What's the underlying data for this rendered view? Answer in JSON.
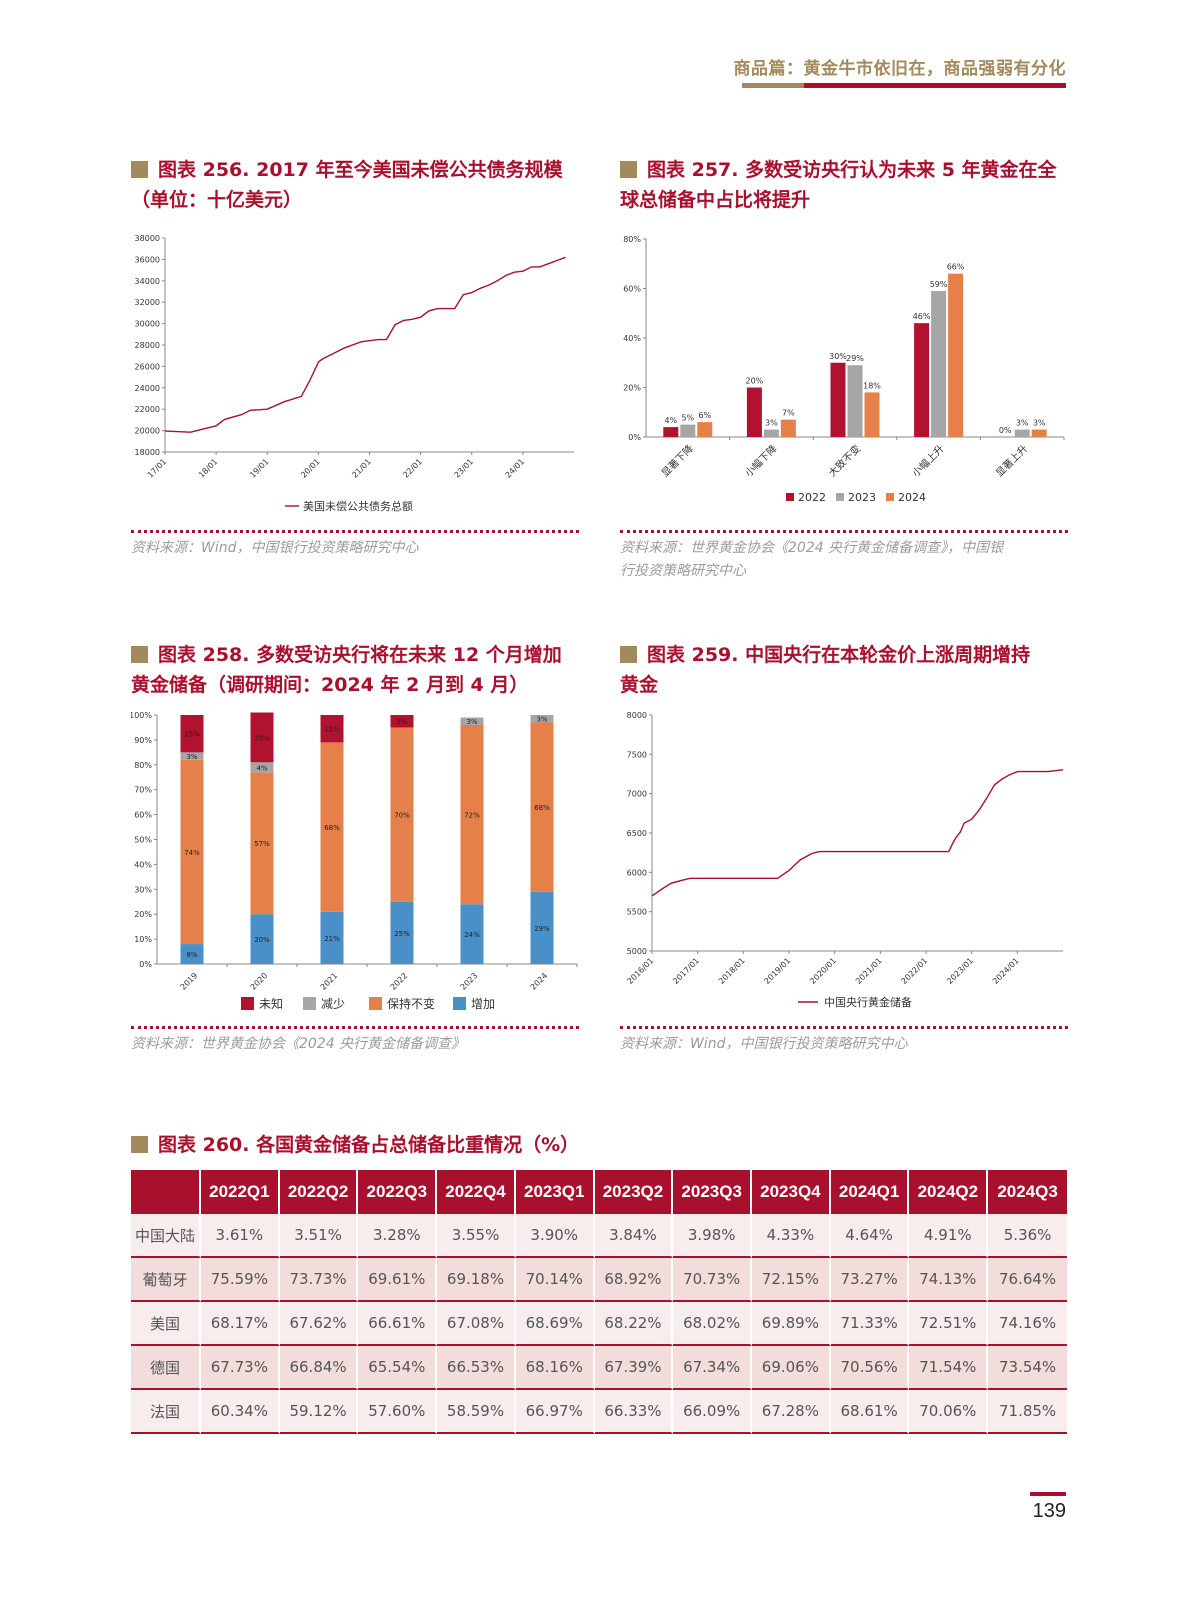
{
  "header": {
    "title": "商品篇：黄金牛市依旧在，商品强弱有分化"
  },
  "fig256": {
    "title_line1": "图表 256. 2017 年至今美国未偿公共债务规模",
    "title_line2": "（单位：十亿美元）",
    "source": "资料来源：Wind，中国银行投资策略研究中心"
  },
  "fig257": {
    "title_line1": "图表 257. 多数受访央行认为未来 5 年黄金在全",
    "title_line2": "球总储备中占比将提升",
    "source_line1": "资料来源：世界黄金协会《2024 央行黄金储备调查》，中国银",
    "source_line2": "行投资策略研究中心"
  },
  "fig258": {
    "title_line1": "图表 258. 多数受访央行将在未来 12 个月增加",
    "title_line2": "黄金储备（调研期间：2024 年 2 月到 4 月）",
    "source": "资料来源：世界黄金协会《2024 央行黄金储备调查》"
  },
  "fig259": {
    "title_line1": "图表 259. 中国央行在本轮金价上涨周期增持",
    "title_line2": "黄金",
    "source": "资料来源：Wind，中国银行投资策略研究中心"
  },
  "fig260": {
    "title": "图表 260. 各国黄金储备占总储备比重情况（%）"
  },
  "chart_data": [
    {
      "id": "c256",
      "type": "line",
      "ylim": [
        18000,
        38000
      ],
      "yticks": [
        "18000",
        "20000",
        "22000",
        "24000",
        "26000",
        "28000",
        "30000",
        "32000",
        "34000",
        "36000",
        "38000"
      ],
      "xticks": [
        "17/01",
        "18/01",
        "19/01",
        "20/01",
        "21/01",
        "22/01",
        "23/01",
        "24/01"
      ],
      "x": [
        0,
        6,
        12,
        14,
        18,
        20,
        24,
        28,
        32,
        34,
        36,
        37,
        38,
        40,
        42,
        44,
        46,
        48,
        50,
        52,
        54,
        56,
        58,
        60,
        62,
        64,
        66,
        68,
        70,
        72,
        74,
        76,
        78,
        80,
        82,
        84,
        86,
        88,
        90,
        92,
        94
      ],
      "series": [
        {
          "name": "美国未偿公共债务总额",
          "color": "#a8102e",
          "values": [
            19950,
            19850,
            20450,
            21050,
            21500,
            21900,
            22000,
            22700,
            23200,
            24700,
            26400,
            26700,
            26900,
            27300,
            27700,
            28000,
            28300,
            28400,
            28500,
            28500,
            29900,
            30300,
            30400,
            30600,
            31200,
            31400,
            31400,
            31400,
            32700,
            32900,
            33300,
            33600,
            34000,
            34500,
            34800,
            34900,
            35300,
            35300,
            35600,
            35900,
            36200
          ]
        }
      ]
    },
    {
      "id": "c257",
      "type": "bar",
      "ylim": [
        0,
        80
      ],
      "yticks": [
        "0%",
        "20%",
        "40%",
        "60%",
        "80%"
      ],
      "categories": [
        "显著下降",
        "小幅下降",
        "大致不变",
        "小幅上升",
        "显著上升"
      ],
      "series": [
        {
          "name": "2022",
          "color": "#b0122f",
          "values": [
            4,
            20,
            30,
            46,
            0
          ],
          "labels": [
            "4%",
            "20%",
            "30%",
            "46%",
            "0%"
          ]
        },
        {
          "name": "2023",
          "color": "#a6a6a6",
          "values": [
            5,
            3,
            29,
            59,
            3
          ],
          "labels": [
            "5%",
            "3%",
            "29%",
            "59%",
            "3%"
          ]
        },
        {
          "name": "2024",
          "color": "#e5804a",
          "values": [
            6,
            7,
            18,
            66,
            3
          ],
          "labels": [
            "6%",
            "7%",
            "18%",
            "66%",
            "3%"
          ]
        }
      ]
    },
    {
      "id": "c258",
      "type": "bar",
      "stacked": true,
      "ylim": [
        0,
        100
      ],
      "yticks": [
        "0%",
        "10%",
        "20%",
        "30%",
        "40%",
        "50%",
        "60%",
        "70%",
        "80%",
        "90%",
        "100%"
      ],
      "categories": [
        "2019",
        "2020",
        "2021",
        "2022",
        "2023",
        "2024"
      ],
      "series": [
        {
          "name": "增加",
          "color": "#4a90c8",
          "values": [
            8,
            20,
            21,
            25,
            24,
            29
          ],
          "labels": [
            "8%",
            "20%",
            "21%",
            "25%",
            "24%",
            "29%"
          ]
        },
        {
          "name": "保持不变",
          "color": "#e5804a",
          "values": [
            74,
            57,
            68,
            70,
            72,
            68
          ],
          "labels": [
            "74%",
            "57%",
            "68%",
            "70%",
            "72%",
            "68%"
          ]
        },
        {
          "name": "减少",
          "color": "#a6a6a6",
          "values": [
            3,
            4,
            0,
            0,
            3,
            3
          ],
          "labels": [
            "3%",
            "4%",
            "",
            "",
            "3%",
            "3%"
          ]
        },
        {
          "name": "未知",
          "color": "#b0122f",
          "values": [
            15,
            20,
            11,
            5,
            0,
            0
          ],
          "labels": [
            "15%",
            "20%",
            "11%",
            "5%",
            "",
            ""
          ]
        }
      ],
      "legend": [
        "未知",
        "减少",
        "保持不变",
        "增加"
      ]
    },
    {
      "id": "c259",
      "type": "line",
      "ylim": [
        5000,
        8000
      ],
      "yticks": [
        "5000",
        "5500",
        "6000",
        "6500",
        "7000",
        "7500",
        "8000"
      ],
      "xticks": [
        "2016/01",
        "2017/01",
        "2018/01",
        "2019/01",
        "2020/01",
        "2021/01",
        "2022/01",
        "2023/01",
        "2024/01"
      ],
      "x": [
        0,
        3,
        5,
        8,
        10,
        12,
        18,
        24,
        30,
        33,
        36,
        39,
        42,
        44,
        48,
        54,
        60,
        66,
        72,
        76,
        78,
        79,
        80,
        81,
        82,
        84,
        86,
        88,
        90,
        92,
        94,
        96,
        100,
        104,
        108
      ],
      "series": [
        {
          "name": "中国央行黄金储备",
          "color": "#a8102e",
          "values": [
            5700,
            5800,
            5860,
            5900,
            5924,
            5924,
            5924,
            5924,
            5924,
            5924,
            6024,
            6160,
            6240,
            6264,
            6264,
            6264,
            6264,
            6264,
            6264,
            6264,
            6264,
            6367,
            6450,
            6512,
            6626,
            6676,
            6795,
            6948,
            7112,
            7187,
            7241,
            7280,
            7280,
            7280,
            7304
          ]
        }
      ]
    }
  ],
  "table": {
    "headers": [
      "",
      "2022Q1",
      "2022Q2",
      "2022Q3",
      "2022Q4",
      "2023Q1",
      "2023Q2",
      "2023Q3",
      "2023Q4",
      "2024Q1",
      "2024Q2",
      "2024Q3"
    ],
    "rows": [
      {
        "label": "中国大陆",
        "values": [
          "3.61%",
          "3.51%",
          "3.28%",
          "3.55%",
          "3.90%",
          "3.84%",
          "3.98%",
          "4.33%",
          "4.64%",
          "4.91%",
          "5.36%"
        ]
      },
      {
        "label": "葡萄牙",
        "values": [
          "75.59%",
          "73.73%",
          "69.61%",
          "69.18%",
          "70.14%",
          "68.92%",
          "70.73%",
          "72.15%",
          "73.27%",
          "74.13%",
          "76.64%"
        ]
      },
      {
        "label": "美国",
        "values": [
          "68.17%",
          "67.62%",
          "66.61%",
          "67.08%",
          "68.69%",
          "68.22%",
          "68.02%",
          "69.89%",
          "71.33%",
          "72.51%",
          "74.16%"
        ]
      },
      {
        "label": "德国",
        "values": [
          "67.73%",
          "66.84%",
          "65.54%",
          "66.53%",
          "68.16%",
          "67.39%",
          "67.34%",
          "69.06%",
          "70.56%",
          "71.54%",
          "73.54%"
        ]
      },
      {
        "label": "法国",
        "values": [
          "60.34%",
          "59.12%",
          "57.60%",
          "58.59%",
          "66.97%",
          "66.33%",
          "66.09%",
          "67.28%",
          "68.61%",
          "70.06%",
          "71.85%"
        ]
      }
    ]
  },
  "page": {
    "number": "139"
  }
}
